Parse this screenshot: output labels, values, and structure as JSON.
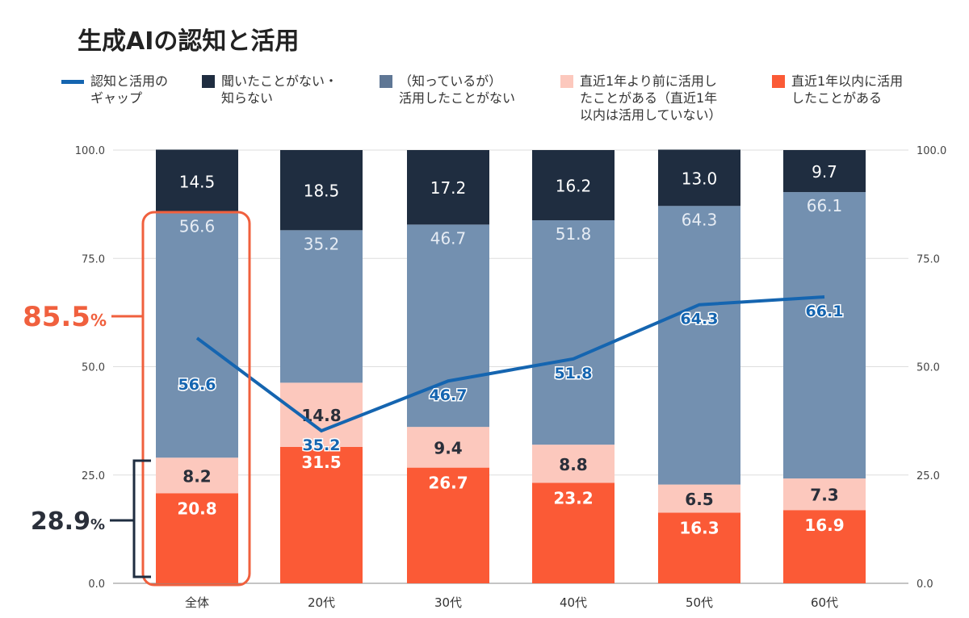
{
  "title": "生成AIの認知と活用",
  "colors": {
    "unaware": "#1f2d40",
    "not_used": "#7390b0",
    "used_before": "#fcc8bd",
    "used_recent": "#fb5a36",
    "gap_line": "#1565b0",
    "highlight": "#f0603e"
  },
  "legend": [
    {
      "label": "認知と活用の\nギャップ",
      "kind": "line",
      "color": "#1565b0"
    },
    {
      "label": "聞いたことがない・\n知らない",
      "kind": "box",
      "color": "#1f2d40"
    },
    {
      "label": "（知っているが）\n活用したことがない",
      "kind": "box",
      "color": "#5f7795"
    },
    {
      "label": "直近1年より前に活用し\nたことがある（直近1年\n以内は活用していない）",
      "kind": "box",
      "color": "#fcc8bd"
    },
    {
      "label": "直近1年以内に活用\nしたことがある",
      "kind": "box",
      "color": "#fb5a36"
    }
  ],
  "annotations": {
    "aware_total": "85.5",
    "used_total": "28.9",
    "percent": "%"
  },
  "chart_data": {
    "type": "bar",
    "stacked": true,
    "categories": [
      "全体",
      "20代",
      "30代",
      "40代",
      "50代",
      "60代"
    ],
    "series": [
      {
        "name": "直近1年以内に活用したことがある",
        "values": [
          20.8,
          31.5,
          26.7,
          23.2,
          16.3,
          16.9
        ]
      },
      {
        "name": "直近1年より前に活用したことがある（直近1年以内は活用していない）",
        "values": [
          8.2,
          14.8,
          9.4,
          8.8,
          6.5,
          7.3
        ]
      },
      {
        "name": "（知っているが）活用したことがない",
        "values": [
          56.6,
          35.2,
          46.7,
          51.8,
          64.3,
          66.1
        ]
      },
      {
        "name": "聞いたことがない・知らない",
        "values": [
          14.5,
          18.5,
          17.2,
          16.2,
          13.0,
          9.7
        ]
      }
    ],
    "line": {
      "name": "認知と活用のギャップ",
      "values": [
        56.6,
        35.2,
        46.7,
        51.8,
        64.3,
        66.1
      ]
    },
    "ylim": [
      0,
      100
    ],
    "yticks": [
      "0.0",
      "25.0",
      "50.0",
      "75.0",
      "100.0"
    ],
    "secondary_yticks": [
      "0.0",
      "25.0",
      "50.0",
      "75.0",
      "100.0"
    ],
    "grid": true,
    "legend_position": "top"
  }
}
